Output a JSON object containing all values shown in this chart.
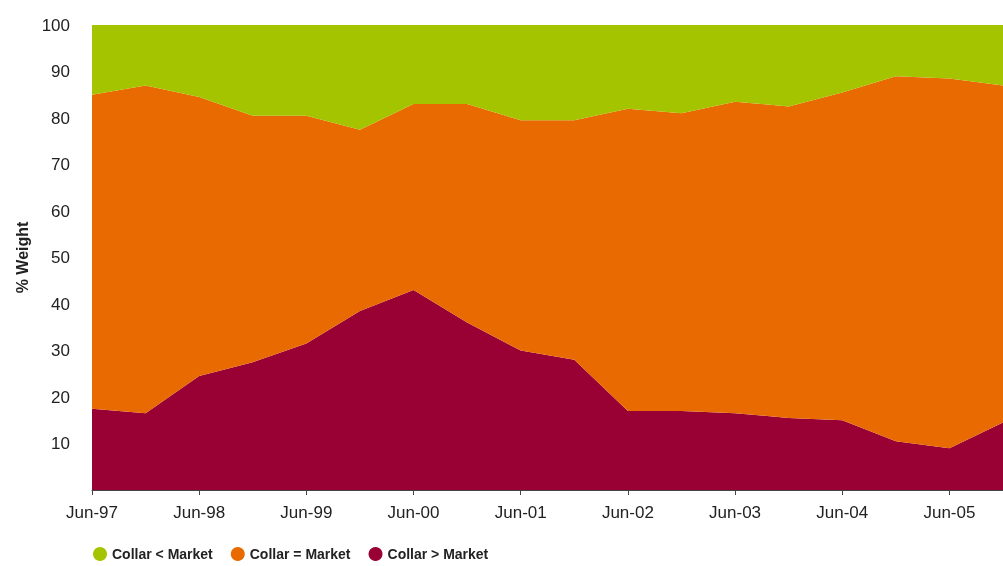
{
  "chart_data": {
    "type": "area",
    "stacked": true,
    "ylabel": "% Weight",
    "ylim": [
      0,
      100
    ],
    "yticks": [
      10,
      20,
      30,
      40,
      50,
      60,
      70,
      80,
      90,
      100
    ],
    "xlim": [
      "1997-06",
      "2005-12"
    ],
    "xticks": [
      {
        "value": "1997-06",
        "label": "Jun-97"
      },
      {
        "value": "1998-06",
        "label": "Jun-98"
      },
      {
        "value": "1999-06",
        "label": "Jun-99"
      },
      {
        "value": "2000-06",
        "label": "Jun-00"
      },
      {
        "value": "2001-06",
        "label": "Jun-01"
      },
      {
        "value": "2002-06",
        "label": "Jun-02"
      },
      {
        "value": "2003-06",
        "label": "Jun-03"
      },
      {
        "value": "2004-06",
        "label": "Jun-04"
      },
      {
        "value": "2005-06",
        "label": "Jun-05"
      }
    ],
    "x": [
      "1997-06",
      "1997-12",
      "1998-06",
      "1998-12",
      "1999-06",
      "1999-12",
      "2000-06",
      "2000-12",
      "2001-06",
      "2001-12",
      "2002-06",
      "2002-12",
      "2003-06",
      "2003-12",
      "2004-06",
      "2004-12",
      "2005-06",
      "2005-12"
    ],
    "grid": false,
    "legend": "bottom left",
    "marker": "none",
    "series": [
      {
        "name": "Collar > Market",
        "color": "#990033",
        "values": [
          17.5,
          16.5,
          24.5,
          27.5,
          31.5,
          38.5,
          43,
          36,
          30,
          28,
          17,
          17,
          16.5,
          15.5,
          15,
          10.5,
          9,
          14.5
        ]
      },
      {
        "name": "Collar = Market",
        "color": "#e86a00",
        "values": [
          67.5,
          70.5,
          60,
          53,
          49,
          39,
          40,
          47,
          49.5,
          51.5,
          65,
          64,
          67,
          67,
          70.5,
          78.5,
          79.5,
          72.5
        ]
      },
      {
        "name": "Collar < Market",
        "color": "#a5c400",
        "values": [
          15,
          13,
          15.5,
          19.5,
          19.5,
          22.5,
          17,
          17,
          20.5,
          20.5,
          18,
          19,
          16.5,
          17.5,
          14.5,
          11,
          11.5,
          13
        ]
      }
    ]
  }
}
